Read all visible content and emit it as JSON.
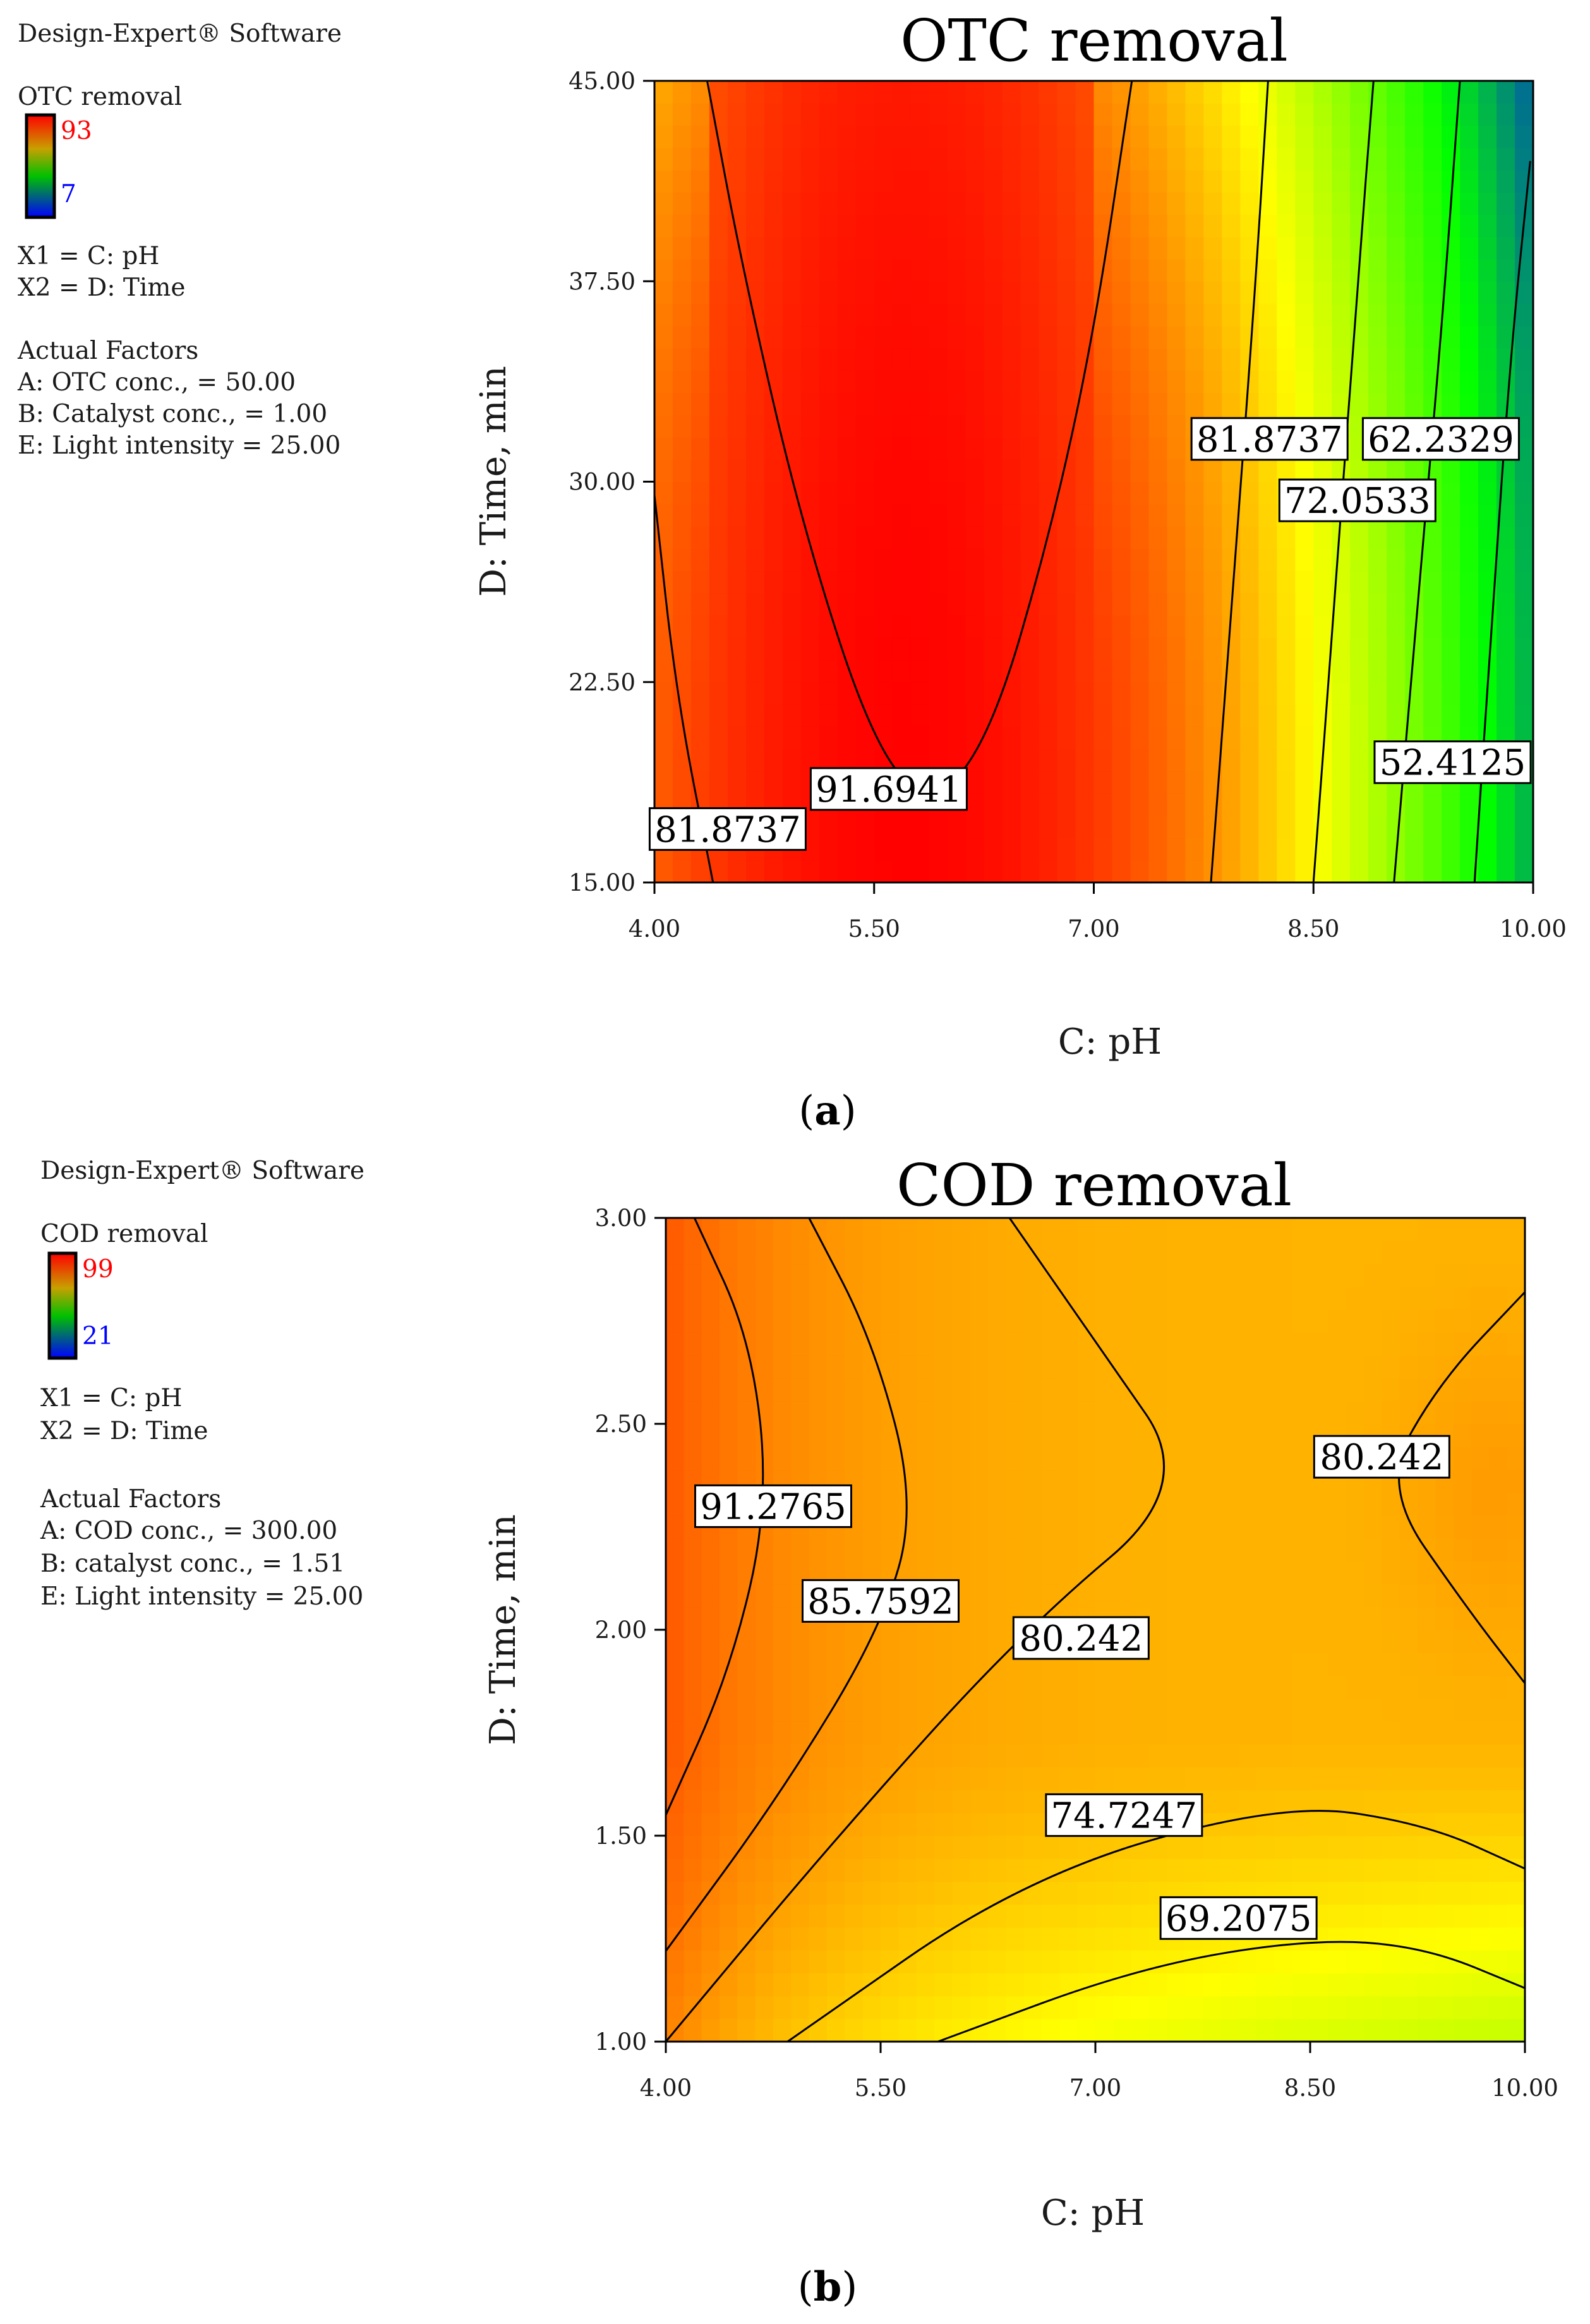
{
  "panels": [
    {
      "software_label": "Design-Expert® Software",
      "response_name": "OTC removal",
      "legend_high": "93",
      "legend_low": "7",
      "x1_label": "X1 = C: pH",
      "x2_label": "X2 = D: Time",
      "actual_factors_heading": "Actual Factors",
      "actual_factors": [
        "A: OTC conc., = 50.00",
        "B: Catalyst conc., = 1.00",
        "E: Light intensity = 25.00"
      ],
      "panel_letter": "a"
    },
    {
      "software_label": "Design-Expert® Software",
      "response_name": "COD removal",
      "legend_high": "99",
      "legend_low": "21",
      "x1_label": "X1 = C: pH",
      "x2_label": "X2 = D: Time",
      "actual_factors_heading": "Actual Factors",
      "actual_factors": [
        "A: COD conc., = 300.00",
        "B: catalyst conc., = 1.51",
        "E: Light intensity = 25.00"
      ],
      "panel_letter": "b"
    }
  ],
  "chart_data": [
    {
      "type": "heatmap",
      "subtype": "contour",
      "title": "OTC removal",
      "xlabel": "C: pH",
      "ylabel": "D: Time, min",
      "xlim": [
        4.0,
        10.0
      ],
      "ylim": [
        15.0,
        45.0
      ],
      "x_ticks": [
        "4.00",
        "5.50",
        "7.00",
        "8.50",
        "10.00"
      ],
      "y_ticks": [
        "15.00",
        "22.50",
        "30.00",
        "37.50",
        "45.00"
      ],
      "color_range": [
        7,
        93
      ],
      "colormap": [
        "#0000ff",
        "#00ff00",
        "#ffff00",
        "#ff0000"
      ],
      "contours": [
        {
          "level": "81.8737",
          "path": [
            [
              4.0,
              29.5
            ],
            [
              4.15,
              22.0
            ],
            [
              4.4,
              15.0
            ]
          ]
        },
        {
          "level": "91.6941",
          "path": [
            [
              4.36,
              45.0
            ],
            [
              4.6,
              38.0
            ],
            [
              5.0,
              28.5
            ],
            [
              5.5,
              20.0
            ],
            [
              5.9,
              17.8
            ],
            [
              6.3,
              20.5
            ],
            [
              6.7,
              28.0
            ],
            [
              7.0,
              35.5
            ],
            [
              7.26,
              45.0
            ]
          ]
        },
        {
          "level": "81.8737",
          "path": [
            [
              7.8,
              15.0
            ],
            [
              7.95,
              26.0
            ],
            [
              8.1,
              37.0
            ],
            [
              8.19,
              45.0
            ]
          ]
        },
        {
          "level": "72.0533",
          "path": [
            [
              8.5,
              15.0
            ],
            [
              8.65,
              26.0
            ],
            [
              8.81,
              38.0
            ],
            [
              8.91,
              45.0
            ]
          ]
        },
        {
          "level": "62.2329",
          "path": [
            [
              9.05,
              15.0
            ],
            [
              9.22,
              26.0
            ],
            [
              9.38,
              36.0
            ],
            [
              9.5,
              45.0
            ]
          ]
        },
        {
          "level": "52.4125",
          "path": [
            [
              9.6,
              15.0
            ],
            [
              9.72,
              25.0
            ],
            [
              9.85,
              35.0
            ],
            [
              9.98,
              42.0
            ]
          ]
        }
      ],
      "labels": [
        {
          "text": "81.8737",
          "x": 4.5,
          "y": 17.0
        },
        {
          "text": "91.6941",
          "x": 5.6,
          "y": 18.5
        },
        {
          "text": "81.8737",
          "x": 8.2,
          "y": 31.6
        },
        {
          "text": "72.0533",
          "x": 8.8,
          "y": 29.3
        },
        {
          "text": "62.2329",
          "x": 9.37,
          "y": 31.6
        },
        {
          "text": "52.4125",
          "x": 9.45,
          "y": 19.5
        }
      ]
    },
    {
      "type": "heatmap",
      "subtype": "contour",
      "title": "COD removal",
      "xlabel": "C: pH",
      "ylabel": "D: Time, min",
      "xlim": [
        4.0,
        10.0
      ],
      "ylim": [
        1.0,
        3.0
      ],
      "x_ticks": [
        "4.00",
        "5.50",
        "7.00",
        "8.50",
        "10.00"
      ],
      "y_ticks": [
        "1.00",
        "1.50",
        "2.00",
        "2.50",
        "3.00"
      ],
      "color_range": [
        21,
        99
      ],
      "colormap": [
        "#0000ff",
        "#00ff00",
        "#ffff00",
        "#ff0000"
      ],
      "contours": [
        {
          "level": "91.2765",
          "path": [
            [
              4.0,
              1.55
            ],
            [
              4.45,
              1.9
            ],
            [
              4.72,
              2.3
            ],
            [
              4.6,
              2.7
            ],
            [
              4.2,
              3.0
            ]
          ]
        },
        {
          "level": "85.7592",
          "path": [
            [
              4.0,
              1.22
            ],
            [
              4.8,
              1.6
            ],
            [
              5.5,
              2.0
            ],
            [
              5.75,
              2.3
            ],
            [
              5.45,
              2.7
            ],
            [
              5.0,
              3.0
            ]
          ]
        },
        {
          "level": "80.242",
          "path": [
            [
              4.0,
              1.0
            ],
            [
              5.2,
              1.5
            ],
            [
              6.5,
              2.0
            ],
            [
              7.7,
              2.35
            ],
            [
              7.0,
              2.7
            ],
            [
              6.4,
              3.0
            ]
          ]
        },
        {
          "level": "80.242",
          "path": [
            [
              10.0,
              1.87
            ],
            [
              9.6,
              2.05
            ],
            [
              9.0,
              2.35
            ],
            [
              9.4,
              2.6
            ],
            [
              10.0,
              2.82
            ]
          ]
        },
        {
          "level": "74.7247",
          "path": [
            [
              4.85,
              1.0
            ],
            [
              6.5,
              1.4
            ],
            [
              8.3,
              1.58
            ],
            [
              9.3,
              1.53
            ],
            [
              10.0,
              1.42
            ]
          ]
        },
        {
          "level": "69.2075",
          "path": [
            [
              5.9,
              1.0
            ],
            [
              7.3,
              1.18
            ],
            [
              8.5,
              1.25
            ],
            [
              9.3,
              1.23
            ],
            [
              10.0,
              1.13
            ]
          ]
        }
      ],
      "labels": [
        {
          "text": "91.2765",
          "x": 4.75,
          "y": 2.3
        },
        {
          "text": "85.7592",
          "x": 5.5,
          "y": 2.07
        },
        {
          "text": "80.242",
          "x": 6.9,
          "y": 1.98
        },
        {
          "text": "80.242",
          "x": 9.0,
          "y": 2.42
        },
        {
          "text": "74.7247",
          "x": 7.2,
          "y": 1.55
        },
        {
          "text": "69.2075",
          "x": 8.0,
          "y": 1.3
        }
      ]
    }
  ]
}
